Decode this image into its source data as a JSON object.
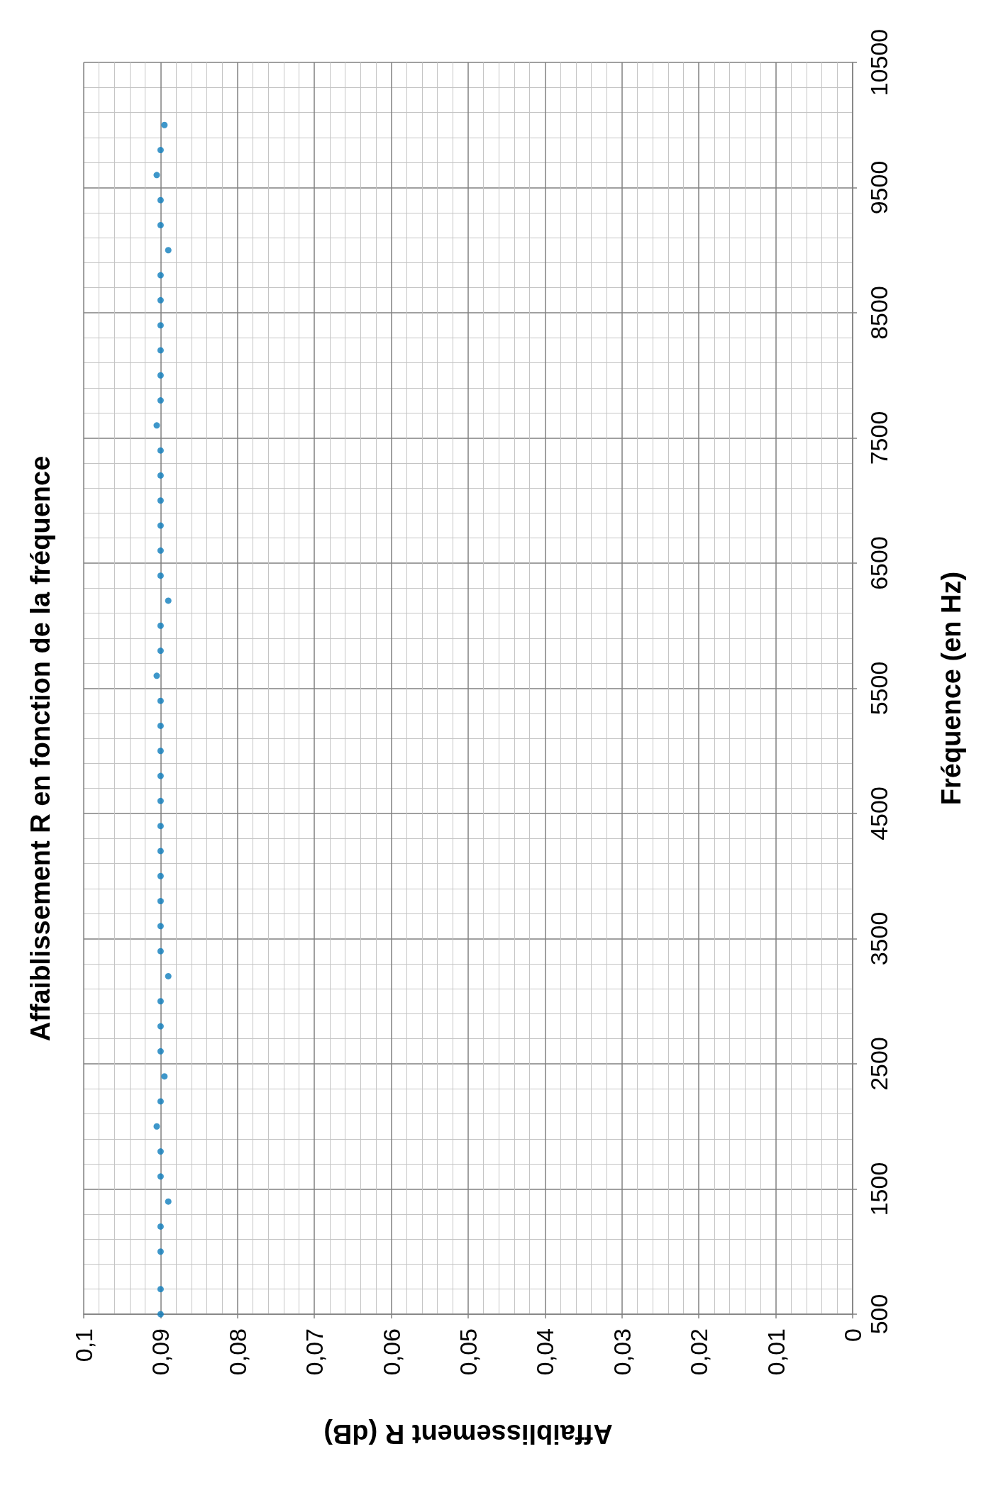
{
  "chart_data": {
    "type": "scatter",
    "title": "Affaiblissement R en fonction de la fréquence",
    "xlabel": "Affaiblissement R (dB)",
    "ylabel": "Fréquence (en Hz)",
    "x": [
      0.09,
      0.09,
      0.09,
      0.09,
      0.089,
      0.09,
      0.09,
      0.0905,
      0.09,
      0.0895,
      0.09,
      0.09,
      0.09,
      0.089,
      0.09,
      0.09,
      0.09,
      0.09,
      0.09,
      0.09,
      0.09,
      0.09,
      0.09,
      0.09,
      0.09,
      0.0905,
      0.09,
      0.09,
      0.089,
      0.09,
      0.09,
      0.09,
      0.09,
      0.09,
      0.09,
      0.0905,
      0.09,
      0.09,
      0.09,
      0.09,
      0.09,
      0.09,
      0.089,
      0.09,
      0.09,
      0.0905,
      0.09,
      0.0895
    ],
    "series": [
      {
        "color": "#0e7dbd",
        "values": [
          500,
          700,
          1000,
          1200,
          1400,
          1600,
          1800,
          2000,
          2200,
          2400,
          2600,
          2800,
          3000,
          3200,
          3400,
          3600,
          3800,
          4000,
          4200,
          4400,
          4600,
          4800,
          5000,
          5200,
          5400,
          5600,
          5800,
          6000,
          6200,
          6400,
          6600,
          6800,
          7000,
          7200,
          7400,
          7600,
          7800,
          8000,
          8200,
          8400,
          8600,
          8800,
          9000,
          9200,
          9400,
          9600,
          9800,
          10000
        ]
      }
    ],
    "ylim": [
      500,
      10500
    ],
    "yticks": [
      500,
      1500,
      2500,
      3500,
      4500,
      5500,
      6500,
      7500,
      8500,
      9500,
      10500
    ],
    "xlim": [
      0.1,
      0
    ],
    "xticks": [
      0,
      {
        "value": 0.01,
        "label": "0,01"
      },
      {
        "value": 0.02,
        "label": "0,02"
      },
      {
        "value": 0.03,
        "label": "0,03"
      },
      {
        "value": 0.04,
        "label": "0,04"
      },
      {
        "value": 0.05,
        "label": "0,05"
      },
      {
        "value": 0.06,
        "label": "0,06"
      },
      {
        "value": 0.07,
        "label": "0,07"
      },
      {
        "value": 0.08,
        "label": "0,08"
      },
      {
        "value": 0.09,
        "label": "0,09"
      },
      {
        "value": 0.1,
        "label": "0,1"
      }
    ],
    "grid": true,
    "marker": "circle"
  }
}
